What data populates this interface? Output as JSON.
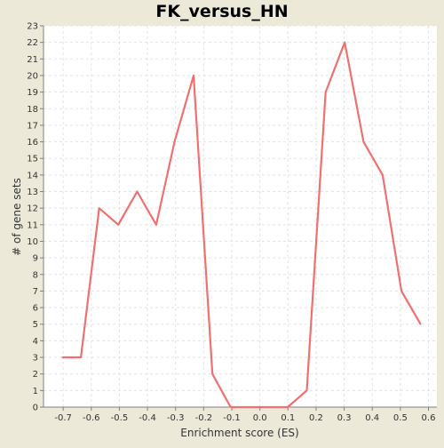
{
  "chart_data": {
    "type": "line",
    "title": "FK_versus_HN",
    "xlabel": "Enrichment score (ES)",
    "ylabel": "# of gene sets",
    "xlim": [
      -0.77,
      0.63
    ],
    "ylim": [
      0,
      23
    ],
    "x_ticks": [
      -0.7,
      -0.6,
      -0.5,
      -0.4,
      -0.3,
      -0.2,
      -0.1,
      0.0,
      0.1,
      0.2,
      0.3,
      0.4,
      0.5,
      0.6
    ],
    "x_tick_labels": [
      "-0.7",
      "-0.6",
      "-0.5",
      "-0.4",
      "-0.3",
      "-0.2",
      "-0.1",
      "0.0",
      "0.1",
      "0.2",
      "0.3",
      "0.4",
      "0.5",
      "0.6"
    ],
    "y_ticks": [
      0,
      1,
      2,
      3,
      4,
      5,
      6,
      7,
      8,
      9,
      10,
      11,
      12,
      13,
      14,
      15,
      16,
      17,
      18,
      19,
      20,
      21,
      22,
      23
    ],
    "grid": true,
    "series": [
      {
        "color": "#f07070",
        "x": [
          -0.703,
          -0.637,
          -0.572,
          -0.504,
          -0.437,
          -0.369,
          -0.304,
          -0.236,
          -0.169,
          -0.104,
          -0.036,
          0.032,
          0.099,
          0.167,
          0.234,
          0.302,
          0.369,
          0.437,
          0.504,
          0.572
        ],
        "y": [
          3,
          3,
          12,
          11,
          13,
          11,
          16,
          20,
          2,
          0,
          0,
          0,
          0,
          1,
          19,
          22,
          16,
          14,
          7,
          5
        ]
      }
    ]
  }
}
